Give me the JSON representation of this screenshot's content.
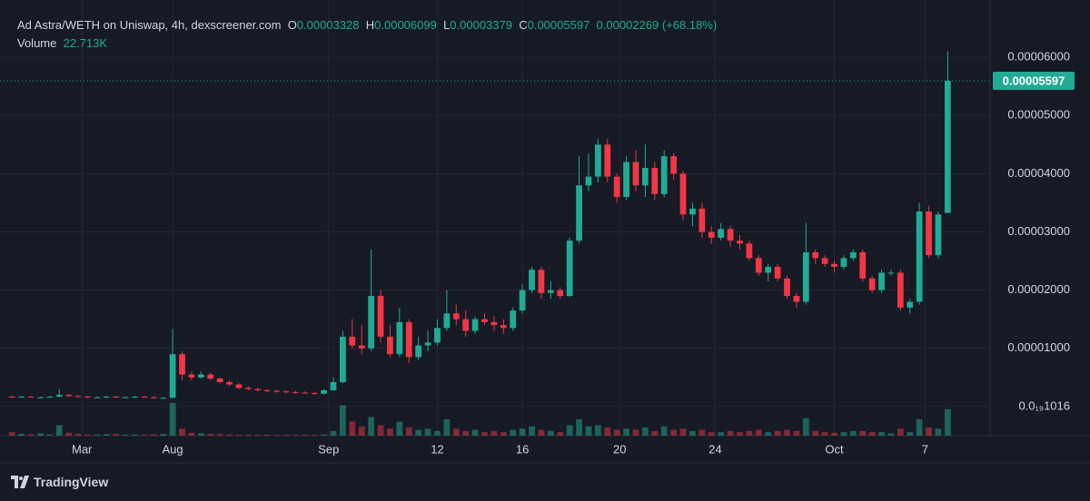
{
  "chart_data": {
    "type": "candlestick",
    "title": "Ad Astra/WETH on Uniswap, 4h, dexscreener.com",
    "ohlc_labels": [
      "O",
      "H",
      "L",
      "C"
    ],
    "change": "0.00002269",
    "change_pct": "(+68.18%)",
    "volume_title": "Volume",
    "volume_last_label": "22.713K",
    "watermark": "TradingView",
    "up_color": "#22ab94",
    "down_color": "#f23645",
    "grid": true,
    "ylim": [
      -5e-06,
      6.984e-05
    ],
    "yticks": [
      {
        "value": 6e-05,
        "label": "0.00006000"
      },
      {
        "value": 5e-05,
        "label": "0.00005000"
      },
      {
        "value": 4e-05,
        "label": "0.00004000"
      },
      {
        "value": 3e-05,
        "label": "0.00003000"
      },
      {
        "value": 2e-05,
        "label": "0.00002000"
      },
      {
        "value": 1e-05,
        "label": "0.00001000"
      },
      {
        "value": 1.016e-20,
        "label": "0.0₁₉1016"
      }
    ],
    "xlim": [
      -0.5,
      103
    ],
    "xticks": [
      {
        "value": 7.4,
        "label": "Mar"
      },
      {
        "value": 17,
        "label": "Aug"
      },
      {
        "value": 33.5,
        "label": "Sep"
      },
      {
        "value": 45,
        "label": "12"
      },
      {
        "value": 54,
        "label": "16"
      },
      {
        "value": 64.3,
        "label": "20"
      },
      {
        "value": 74.4,
        "label": "24"
      },
      {
        "value": 87,
        "label": "Oct"
      },
      {
        "value": 96.6,
        "label": "7"
      }
    ],
    "candles": [
      [
        1.7e-06,
        1.9e-06,
        1.5e-06,
        1.6e-06
      ],
      [
        1.6e-06,
        1.8e-06,
        1.5e-06,
        1.7e-06
      ],
      [
        1.7e-06,
        1.8e-06,
        1.6e-06,
        1.6e-06
      ],
      [
        1.6e-06,
        1.7e-06,
        1.5e-06,
        1.6e-06
      ],
      [
        1.6e-06,
        1.8e-06,
        1.5e-06,
        1.7e-06
      ],
      [
        1.7e-06,
        3e-06,
        1.6e-06,
        2e-06
      ],
      [
        2e-06,
        2.2e-06,
        1.7e-06,
        1.8e-06
      ],
      [
        1.8e-06,
        2e-06,
        1.6e-06,
        1.7e-06
      ],
      [
        1.7e-06,
        1.8e-06,
        1.5e-06,
        1.6e-06
      ],
      [
        1.6e-06,
        1.7e-06,
        1.5e-06,
        1.6e-06
      ],
      [
        1.6e-06,
        1.8e-06,
        1.5e-06,
        1.7e-06
      ],
      [
        1.7e-06,
        1.8e-06,
        1.5e-06,
        1.6e-06
      ],
      [
        1.6e-06,
        1.7e-06,
        1.5e-06,
        1.6e-06
      ],
      [
        1.6e-06,
        1.8e-06,
        1.5e-06,
        1.7e-06
      ],
      [
        1.7e-06,
        1.8e-06,
        1.5e-06,
        1.6e-06
      ],
      [
        1.6e-06,
        1.7e-06,
        1.4e-06,
        1.5e-06
      ],
      [
        1.5e-06,
        1.6e-06,
        1.3e-06,
        1.5e-06
      ],
      [
        1.5e-06,
        1.33e-05,
        1.4e-06,
        9e-06
      ],
      [
        9e-06,
        9.5e-06,
        4.5e-06,
        5.5e-06
      ],
      [
        5.5e-06,
        6e-06,
        4.5e-06,
        5e-06
      ],
      [
        5e-06,
        6e-06,
        4.8e-06,
        5.5e-06
      ],
      [
        5.5e-06,
        5.8e-06,
        4.5e-06,
        4.8e-06
      ],
      [
        4.8e-06,
        5e-06,
        4e-06,
        4.2e-06
      ],
      [
        4.2e-06,
        4.5e-06,
        3.5e-06,
        3.8e-06
      ],
      [
        3.8e-06,
        4e-06,
        3e-06,
        3.2e-06
      ],
      [
        3.2e-06,
        3.5e-06,
        2.8e-06,
        3e-06
      ],
      [
        3e-06,
        3.2e-06,
        2.6e-06,
        2.8e-06
      ],
      [
        2.8e-06,
        3e-06,
        2.5e-06,
        2.7e-06
      ],
      [
        2.7e-06,
        2.9e-06,
        2.4e-06,
        2.6e-06
      ],
      [
        2.6e-06,
        2.8e-06,
        2.3e-06,
        2.5e-06
      ],
      [
        2.5e-06,
        2.7e-06,
        2.2e-06,
        2.4e-06
      ],
      [
        2.4e-06,
        2.6e-06,
        2.2e-06,
        2.3e-06
      ],
      [
        2.3e-06,
        2.5e-06,
        2e-06,
        2.2e-06
      ],
      [
        2.2e-06,
        3e-06,
        2.1e-06,
        2.8e-06
      ],
      [
        2.8e-06,
        5e-06,
        2.7e-06,
        4.2e-06
      ],
      [
        4.2e-06,
        1.3e-05,
        4e-06,
        1.2e-05
      ],
      [
        1.2e-05,
        1.5e-05,
        1e-05,
        1.05e-05
      ],
      [
        1.05e-05,
        1.4e-05,
        9e-06,
        1e-05
      ],
      [
        1e-05,
        2.7e-05,
        9.5e-06,
        1.9e-05
      ],
      [
        1.9e-05,
        2e-05,
        1.1e-05,
        1.2e-05
      ],
      [
        1.2e-05,
        1.4e-05,
        8.5e-06,
        9e-06
      ],
      [
        9e-06,
        1.7e-05,
        8.5e-06,
        1.45e-05
      ],
      [
        1.45e-05,
        1.5e-05,
        7.5e-06,
        8.5e-06
      ],
      [
        8.5e-06,
        1.2e-05,
        8e-06,
        1.05e-05
      ],
      [
        1.05e-05,
        1.3e-05,
        9.5e-06,
        1.1e-05
      ],
      [
        1.1e-05,
        1.5e-05,
        1.05e-05,
        1.35e-05
      ],
      [
        1.35e-05,
        2e-05,
        1.3e-05,
        1.6e-05
      ],
      [
        1.6e-05,
        1.75e-05,
        1.4e-05,
        1.5e-05
      ],
      [
        1.5e-05,
        1.65e-05,
        1.2e-05,
        1.3e-05
      ],
      [
        1.3e-05,
        1.55e-05,
        1.25e-05,
        1.5e-05
      ],
      [
        1.5e-05,
        1.6e-05,
        1.4e-05,
        1.45e-05
      ],
      [
        1.45e-05,
        1.55e-05,
        1.3e-05,
        1.4e-05
      ],
      [
        1.4e-05,
        1.5e-05,
        1.25e-05,
        1.35e-05
      ],
      [
        1.35e-05,
        1.7e-05,
        1.3e-05,
        1.65e-05
      ],
      [
        1.65e-05,
        2.1e-05,
        1.6e-05,
        2e-05
      ],
      [
        2e-05,
        2.4e-05,
        1.95e-05,
        2.35e-05
      ],
      [
        2.35e-05,
        2.4e-05,
        1.85e-05,
        1.95e-05
      ],
      [
        1.95e-05,
        2.15e-05,
        1.85e-05,
        2e-05
      ],
      [
        2e-05,
        2.05e-05,
        1.85e-05,
        1.9e-05
      ],
      [
        1.9e-05,
        2.9e-05,
        1.88e-05,
        2.85e-05
      ],
      [
        2.85e-05,
        4.3e-05,
        2.8e-05,
        3.8e-05
      ],
      [
        3.8e-05,
        4.35e-05,
        3.7e-05,
        3.95e-05
      ],
      [
        3.95e-05,
        4.6e-05,
        3.85e-05,
        4.5e-05
      ],
      [
        4.5e-05,
        4.6e-05,
        3.85e-05,
        3.95e-05
      ],
      [
        3.95e-05,
        4e-05,
        3.5e-05,
        3.6e-05
      ],
      [
        3.6e-05,
        4.3e-05,
        3.55e-05,
        4.2e-05
      ],
      [
        4.2e-05,
        4.4e-05,
        3.7e-05,
        3.8e-05
      ],
      [
        3.8e-05,
        4.5e-05,
        3.6e-05,
        4.1e-05
      ],
      [
        4.1e-05,
        4.2e-05,
        3.55e-05,
        3.65e-05
      ],
      [
        3.65e-05,
        4.4e-05,
        3.6e-05,
        4.3e-05
      ],
      [
        4.3e-05,
        4.35e-05,
        3.9e-05,
        4e-05
      ],
      [
        4e-05,
        4.05e-05,
        3.2e-05,
        3.3e-05
      ],
      [
        3.3e-05,
        3.5e-05,
        3.1e-05,
        3.4e-05
      ],
      [
        3.4e-05,
        3.5e-05,
        2.9e-05,
        3e-05
      ],
      [
        3e-05,
        3.1e-05,
        2.8e-05,
        2.9e-05
      ],
      [
        2.9e-05,
        3.15e-05,
        2.85e-05,
        3.05e-05
      ],
      [
        3.05e-05,
        3.1e-05,
        2.75e-05,
        2.85e-05
      ],
      [
        2.85e-05,
        2.95e-05,
        2.7e-05,
        2.8e-05
      ],
      [
        2.8e-05,
        2.85e-05,
        2.5e-05,
        2.55e-05
      ],
      [
        2.55e-05,
        2.6e-05,
        2.25e-05,
        2.3e-05
      ],
      [
        2.3e-05,
        2.45e-05,
        2.15e-05,
        2.4e-05
      ],
      [
        2.4e-05,
        2.45e-05,
        2.15e-05,
        2.2e-05
      ],
      [
        2.2e-05,
        2.25e-05,
        1.85e-05,
        1.9e-05
      ],
      [
        1.9e-05,
        1.95e-05,
        1.7e-05,
        1.8e-05
      ],
      [
        1.8e-05,
        3.15e-05,
        1.75e-05,
        2.65e-05
      ],
      [
        2.65e-05,
        2.7e-05,
        2.45e-05,
        2.55e-05
      ],
      [
        2.55e-05,
        2.6e-05,
        2.4e-05,
        2.45e-05
      ],
      [
        2.45e-05,
        2.5e-05,
        2.3e-05,
        2.4e-05
      ],
      [
        2.4e-05,
        2.6e-05,
        2.35e-05,
        2.55e-05
      ],
      [
        2.55e-05,
        2.7e-05,
        2.5e-05,
        2.65e-05
      ],
      [
        2.65e-05,
        2.7e-05,
        2.15e-05,
        2.2e-05
      ],
      [
        2.2e-05,
        2.25e-05,
        1.95e-05,
        2e-05
      ],
      [
        2e-05,
        2.35e-05,
        1.95e-05,
        2.3e-05
      ],
      [
        2.3e-05,
        2.35e-05,
        2.25e-05,
        2.3e-05
      ],
      [
        2.3e-05,
        2.35e-05,
        1.65e-05,
        1.7e-05
      ],
      [
        1.7e-05,
        1.85e-05,
        1.6e-05,
        1.8e-05
      ],
      [
        1.8e-05,
        3.5e-05,
        1.75e-05,
        3.35e-05
      ],
      [
        3.35e-05,
        3.45e-05,
        2.55e-05,
        2.6e-05
      ],
      [
        2.6e-05,
        3.35e-05,
        2.55e-05,
        3.3e-05
      ],
      [
        3.328e-05,
        6.099e-05,
        3.379e-05,
        5.597e-05
      ]
    ],
    "volume": [
      3000,
      1500,
      1200,
      2000,
      1000,
      9000,
      2500,
      1500,
      1000,
      800,
      1200,
      1500,
      900,
      1000,
      800,
      1200,
      1500,
      28000,
      6000,
      2500,
      2000,
      1500,
      1200,
      1000,
      800,
      900,
      700,
      800,
      600,
      700,
      600,
      800,
      700,
      900,
      4000,
      26000,
      12000,
      8000,
      16000,
      9000,
      6000,
      12000,
      7000,
      5000,
      6000,
      4000,
      14000,
      6000,
      4000,
      5000,
      3000,
      4000,
      3000,
      5000,
      6000,
      8000,
      5000,
      4000,
      3000,
      9000,
      14000,
      8000,
      9000,
      7000,
      5000,
      6000,
      5000,
      7000,
      4000,
      8000,
      5000,
      6000,
      4000,
      5000,
      3000,
      3000,
      4000,
      3000,
      4000,
      5000,
      3000,
      4000,
      5000,
      4000,
      15000,
      4000,
      3000,
      2500,
      3000,
      4000,
      4000,
      3000,
      3000,
      2000,
      6000,
      3000,
      14000,
      7000,
      6000,
      22713
    ]
  }
}
